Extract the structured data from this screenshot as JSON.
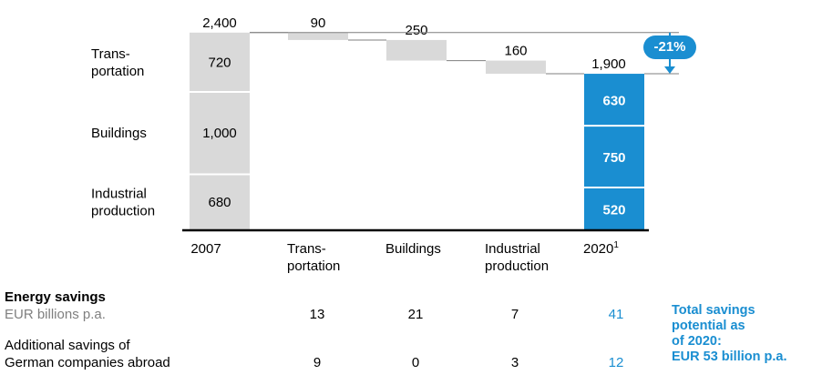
{
  "chart_data": {
    "type": "waterfall",
    "unit": "",
    "start": {
      "label": "2007",
      "total": 2400,
      "segments": [
        {
          "name": "Trans-\nportation",
          "value": 720
        },
        {
          "name": "Buildings",
          "value": 1000
        },
        {
          "name": "Industrial\nproduction",
          "value": 680
        }
      ]
    },
    "steps": [
      {
        "label": "Trans-\nportation",
        "value": -90,
        "display": "90"
      },
      {
        "label": "Buildings",
        "value": -250,
        "display": "250"
      },
      {
        "label": "Industrial\nproduction",
        "value": -160,
        "display": "160"
      }
    ],
    "end": {
      "label": "2020",
      "footnote": "1",
      "total": 1900,
      "segments": [
        {
          "name": "Transportation",
          "value": 630
        },
        {
          "name": "Buildings",
          "value": 750
        },
        {
          "name": "Industrial production",
          "value": 520
        }
      ]
    },
    "change_label": "-21%",
    "colors": {
      "start": "#d9d9d9",
      "step": "#d9d9d9",
      "end": "#1a8ed1",
      "axis": "#000000",
      "connector": "#7f7f7f"
    }
  },
  "savings_table": {
    "rows": [
      {
        "title": "Energy savings",
        "subtitle": "EUR billions p.a.",
        "values": [
          "13",
          "21",
          "7",
          "41"
        ]
      },
      {
        "title": "Additional savings of",
        "subtitle": "German companies abroad",
        "values": [
          "9",
          "0",
          "3",
          "12"
        ]
      }
    ],
    "total_note": "Total savings\npotential as\nof 2020:\nEUR 53 billion p.a."
  }
}
